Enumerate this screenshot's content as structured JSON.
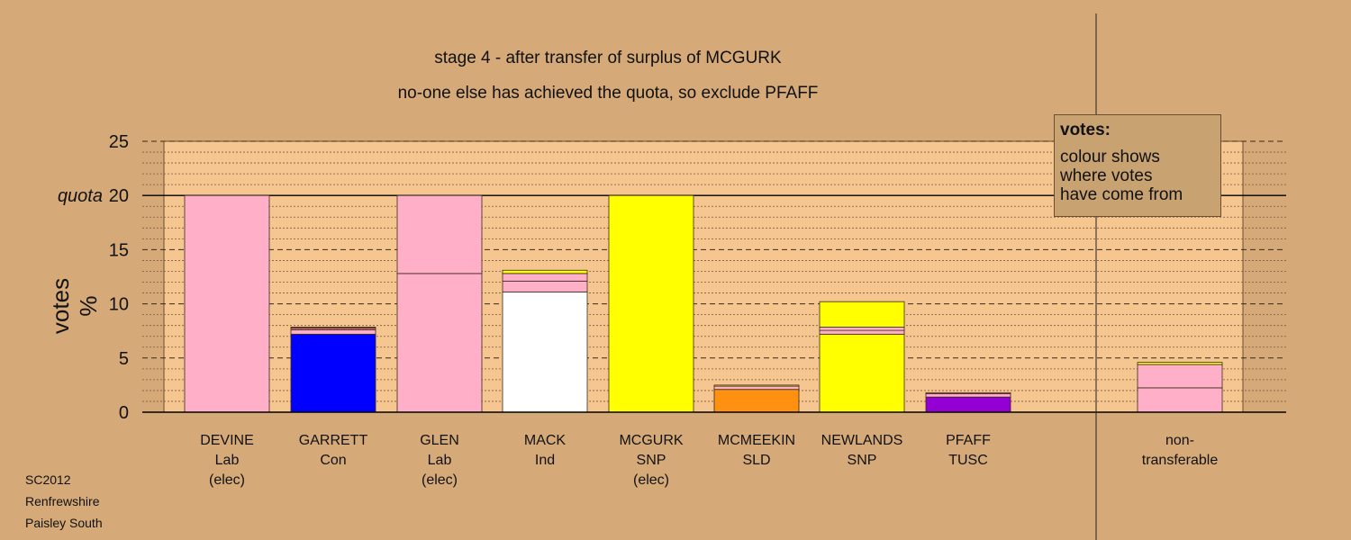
{
  "title": "stage 4 - after transfer of surplus of MCGURK",
  "subtitle": "no-one else has achieved the quota, so exclude PFAFF",
  "legend": {
    "title": "votes:",
    "body": "colour shows\nwhere votes\nhave come from"
  },
  "footer": {
    "lines": [
      "SC2012",
      "Renfrewshire",
      "Paisley South"
    ]
  },
  "colors": {
    "background": "#d5aa78",
    "plot_background": "#f5c690",
    "axis": "#000000"
  },
  "chart_data": {
    "type": "bar",
    "stacked": true,
    "ylabel": "votes %",
    "ylim": [
      0,
      25
    ],
    "yticks": [
      0,
      5,
      10,
      15,
      20,
      25
    ],
    "quota": {
      "value": 20,
      "label": "quota"
    },
    "grid": "dashed major every 5, dotted minor every 1",
    "categories": [
      {
        "name": "DEVINE",
        "party": "Lab",
        "note": "(elec)",
        "segments": [
          {
            "color": "#ffb0c8",
            "value": 20.0
          }
        ]
      },
      {
        "name": "GARRETT",
        "party": "Con",
        "note": "",
        "segments": [
          {
            "color": "#0000ff",
            "value": 7.2
          },
          {
            "color": "#ffb0c8",
            "value": 0.4
          },
          {
            "color": "#ff80a8",
            "value": 0.15
          },
          {
            "color": "#8b5a2b",
            "value": 0.1
          }
        ]
      },
      {
        "name": "GLEN",
        "party": "Lab",
        "note": "(elec)",
        "segments": [
          {
            "color": "#ffb0c8",
            "value": 12.8
          },
          {
            "color": "#ffb0c8",
            "value": 7.2
          }
        ]
      },
      {
        "name": "MACK",
        "party": "Ind",
        "note": "",
        "segments": [
          {
            "color": "#ffffff",
            "value": 11.1
          },
          {
            "color": "#ffb0c8",
            "value": 1.0
          },
          {
            "color": "#ffb0c8",
            "value": 0.7
          },
          {
            "color": "#ffff00",
            "value": 0.3
          }
        ]
      },
      {
        "name": "MCGURK",
        "party": "SNP",
        "note": "(elec)",
        "segments": [
          {
            "color": "#ffff00",
            "value": 20.0
          }
        ]
      },
      {
        "name": "MCMEEKIN",
        "party": "SLD",
        "note": "",
        "segments": [
          {
            "color": "#ff9010",
            "value": 2.1
          },
          {
            "color": "#ffb0c8",
            "value": 0.3
          },
          {
            "color": "#ffff00",
            "value": 0.1
          }
        ]
      },
      {
        "name": "NEWLANDS",
        "party": "SNP",
        "note": "",
        "segments": [
          {
            "color": "#ffff00",
            "value": 7.2
          },
          {
            "color": "#ffb0c8",
            "value": 0.35
          },
          {
            "color": "#ffb0c8",
            "value": 0.3
          },
          {
            "color": "#ffff00",
            "value": 2.35
          }
        ]
      },
      {
        "name": "PFAFF",
        "party": "TUSC",
        "note": "",
        "segments": [
          {
            "color": "#9400d3",
            "value": 1.4
          },
          {
            "color": "#ffb0c8",
            "value": 0.3
          },
          {
            "color": "#ff80a8",
            "value": 0.1
          }
        ]
      },
      {
        "name": "non-",
        "party": "transferable",
        "note": "",
        "segments": [
          {
            "color": "#ffb0c8",
            "value": 2.25
          },
          {
            "color": "#ffb0c8",
            "value": 2.15
          },
          {
            "color": "#ffff00",
            "value": 0.2
          }
        ]
      }
    ]
  }
}
